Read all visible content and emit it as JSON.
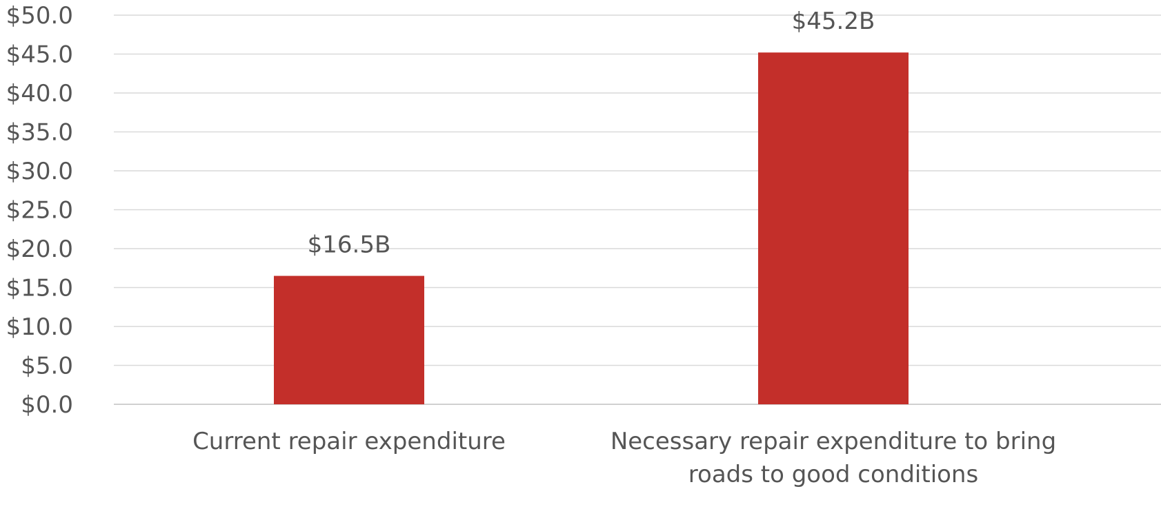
{
  "chart_data": {
    "type": "bar",
    "title": "",
    "xlabel": "",
    "ylabel": "",
    "categories": [
      [
        "Current repair expenditure"
      ],
      [
        "Necessary repair expenditure to bring",
        "roads to good conditions"
      ]
    ],
    "values": [
      16.5,
      45.2
    ],
    "data_labels": [
      "$16.5B",
      "$45.2B"
    ],
    "ylim": [
      0,
      50
    ],
    "y_ticks": [
      0,
      5,
      10,
      15,
      20,
      25,
      30,
      35,
      40,
      45,
      50
    ],
    "y_tick_labels": [
      "$0.0",
      "$5.0",
      "$10.0",
      "$15.0",
      "$20.0",
      "$25.0",
      "$30.0",
      "$35.0",
      "$40.0",
      "$45.0",
      "$50.0"
    ],
    "grid": true,
    "legend": "none",
    "bar_color": "#c32f2a",
    "grid_color": "#d9d9d9",
    "text_color": "#555555"
  }
}
